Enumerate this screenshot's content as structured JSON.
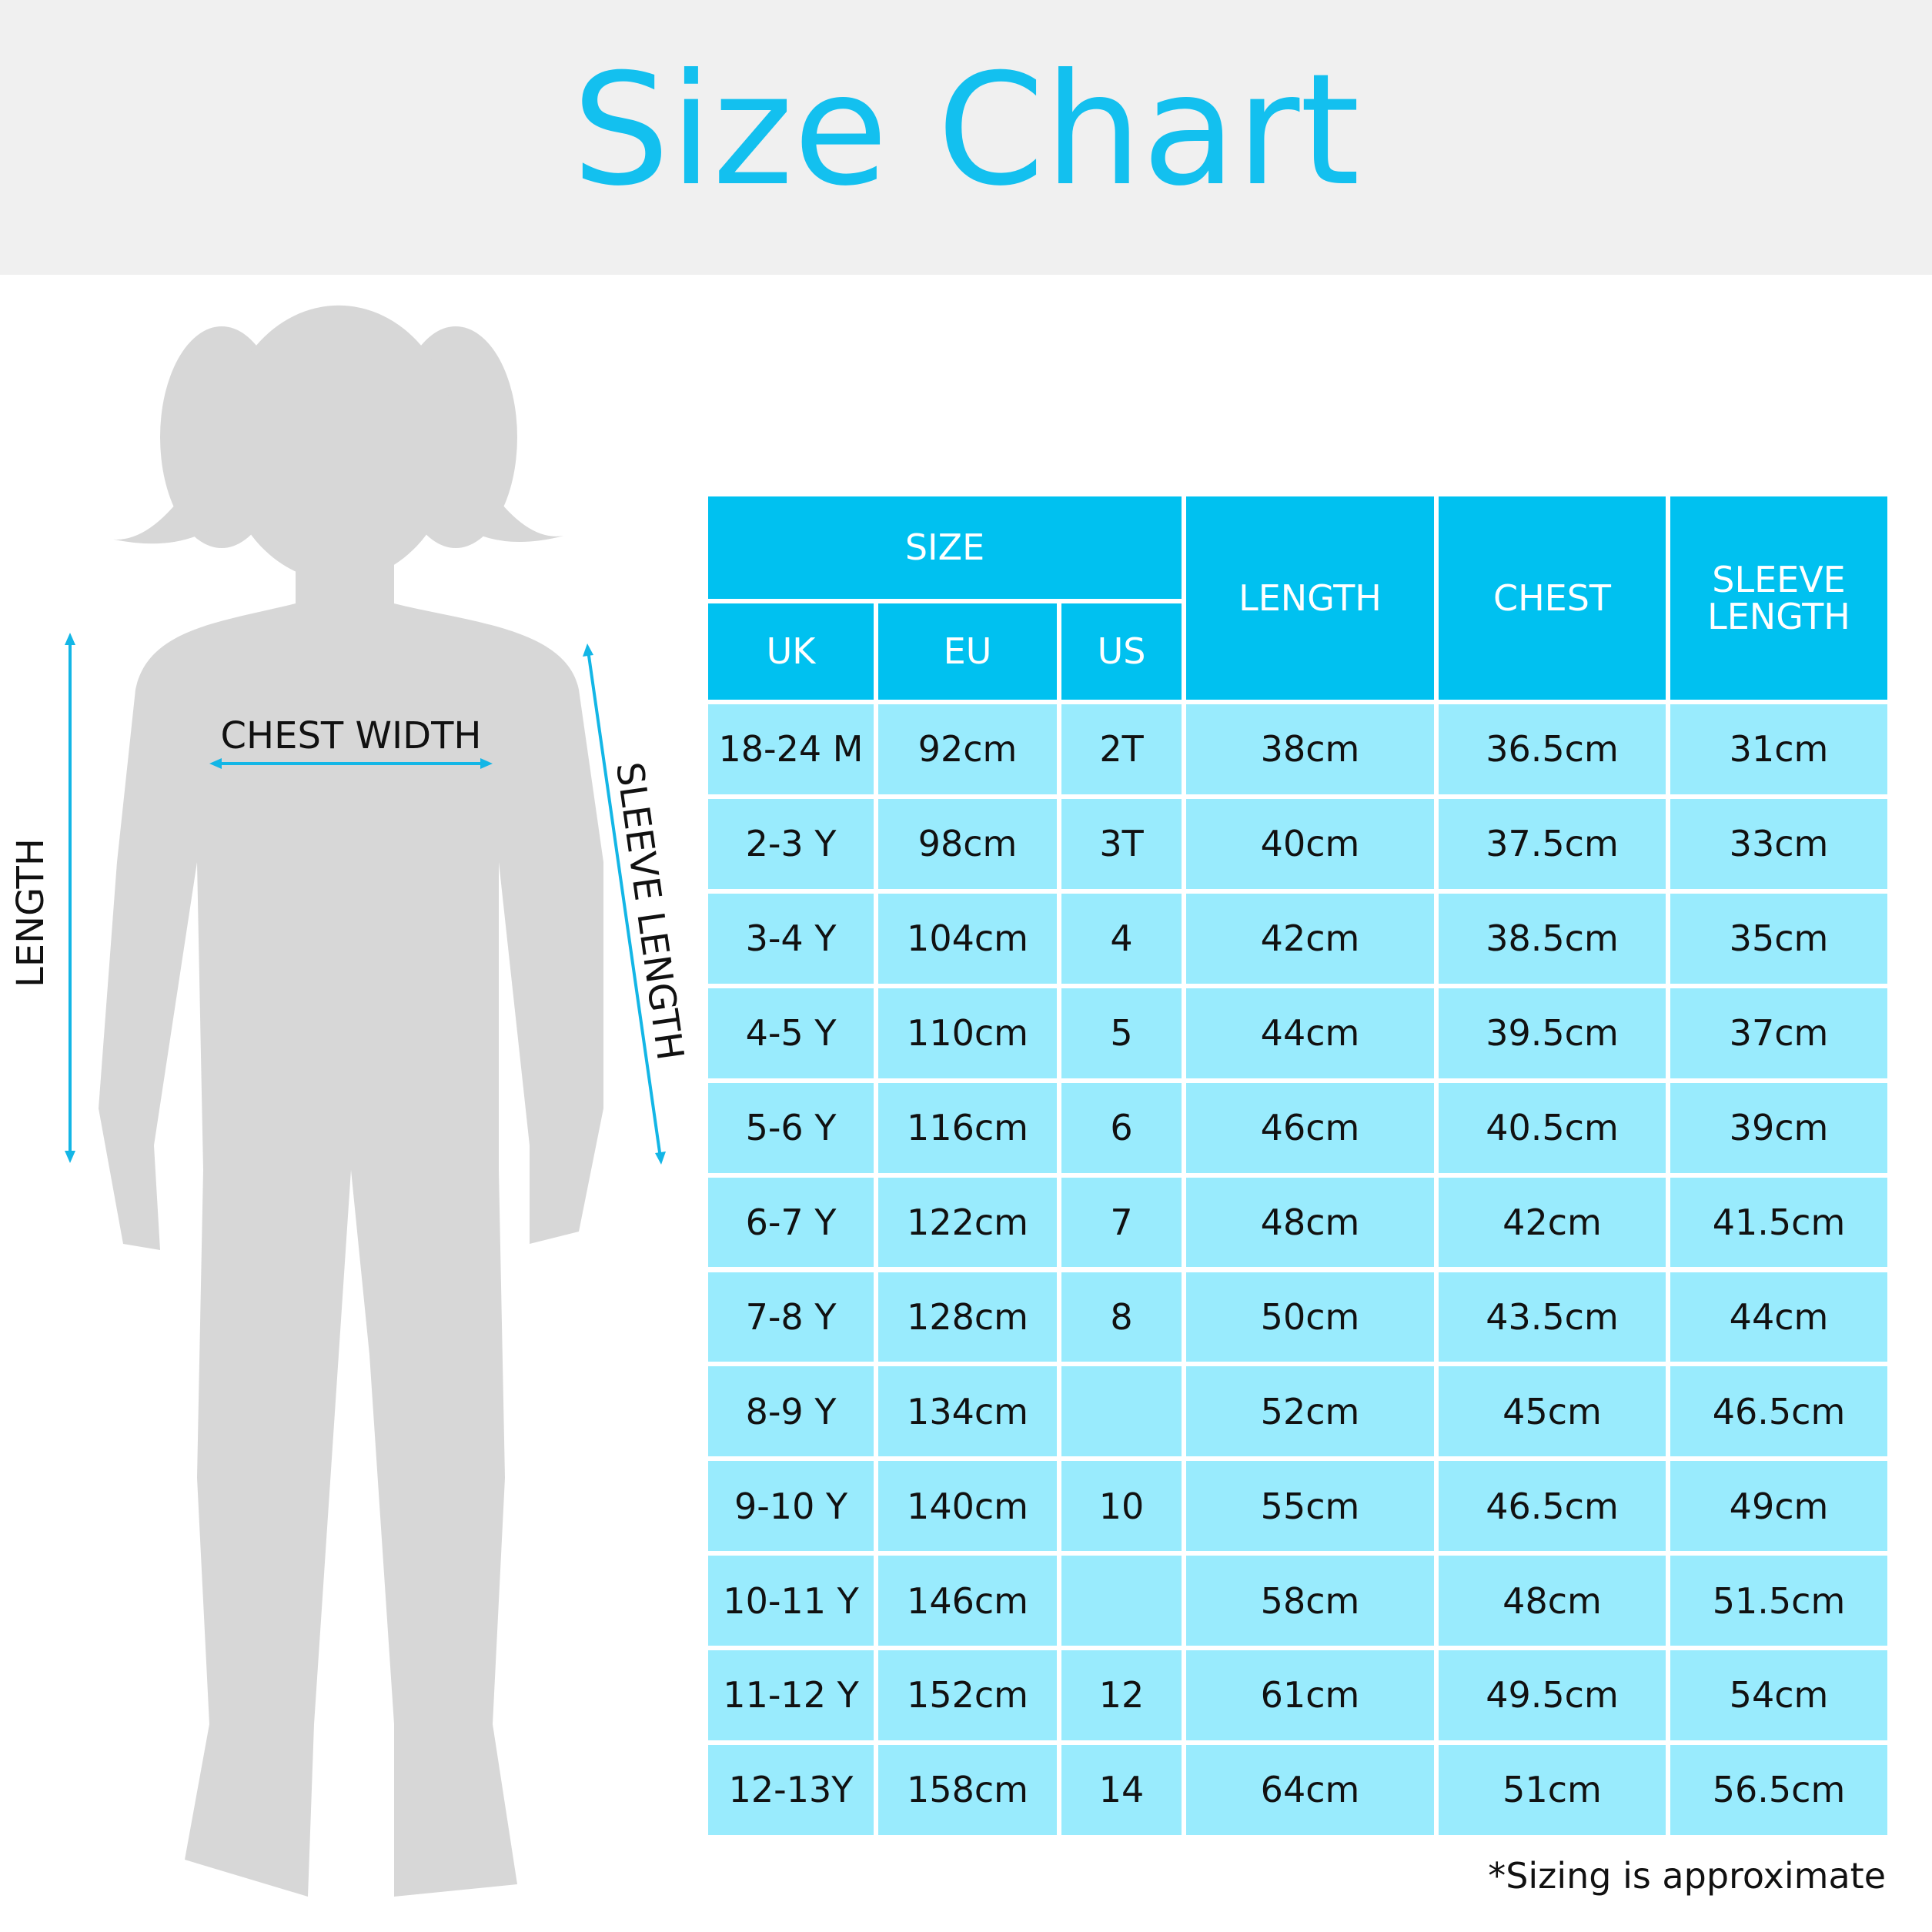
{
  "header": {
    "title": "Size Chart"
  },
  "figure": {
    "chest_label": "CHEST WIDTH",
    "length_label": "LENGTH",
    "sleeve_label": "SLEEVE LENGTH"
  },
  "table": {
    "group_header": "SIZE",
    "sub_headers": [
      "UK",
      "EU",
      "US"
    ],
    "headers": [
      "LENGTH",
      "CHEST",
      "SLEEVE LENGTH"
    ],
    "rows": [
      [
        "18-24 M",
        "92cm",
        "2T",
        "38cm",
        "36.5cm",
        "31cm"
      ],
      [
        "2-3 Y",
        "98cm",
        "3T",
        "40cm",
        "37.5cm",
        "33cm"
      ],
      [
        "3-4 Y",
        "104cm",
        "4",
        "42cm",
        "38.5cm",
        "35cm"
      ],
      [
        "4-5 Y",
        "110cm",
        "5",
        "44cm",
        "39.5cm",
        "37cm"
      ],
      [
        "5-6 Y",
        "116cm",
        "6",
        "46cm",
        "40.5cm",
        "39cm"
      ],
      [
        "6-7 Y",
        "122cm",
        "7",
        "48cm",
        "42cm",
        "41.5cm"
      ],
      [
        "7-8 Y",
        "128cm",
        "8",
        "50cm",
        "43.5cm",
        "44cm"
      ],
      [
        "8-9 Y",
        "134cm",
        null,
        "52cm",
        "45cm",
        "46.5cm"
      ],
      [
        "9-10 Y",
        "140cm",
        "10",
        "55cm",
        "46.5cm",
        "49cm"
      ],
      [
        "10-11 Y",
        "146cm",
        null,
        "58cm",
        "48cm",
        "51.5cm"
      ],
      [
        "11-12 Y",
        "152cm",
        "12",
        "61cm",
        "49.5cm",
        "54cm"
      ],
      [
        "12-13Y",
        "158cm",
        "14",
        "64cm",
        "51cm",
        "56.5cm"
      ]
    ]
  },
  "footnote": "*Sizing is approximate"
}
